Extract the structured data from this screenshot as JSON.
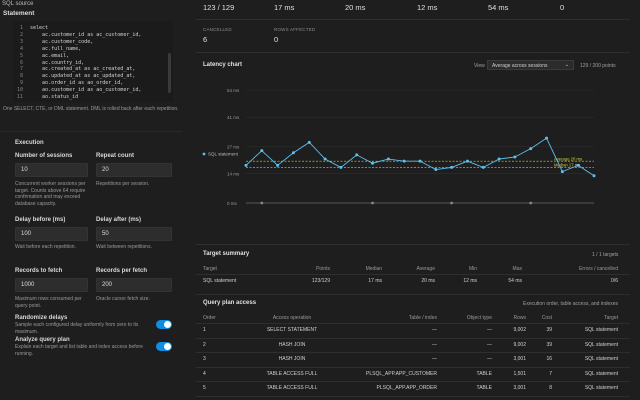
{
  "left": {
    "sql_source_title": "SQL source",
    "statement_label": "Statement",
    "code_lines": [
      {
        "n": "1",
        "text": "select"
      },
      {
        "n": "2",
        "text": "    ac.customer_id as ac_customer_id,"
      },
      {
        "n": "3",
        "text": "    ac.customer_code,"
      },
      {
        "n": "4",
        "text": "    ac.full_name,"
      },
      {
        "n": "5",
        "text": "    ac.email,"
      },
      {
        "n": "6",
        "text": "    ac.country_id,"
      },
      {
        "n": "7",
        "text": "    ac.created_at as ac_created_at,"
      },
      {
        "n": "8",
        "text": "    ac.updated_at as ac_updated_at,"
      },
      {
        "n": "9",
        "text": "    ao.order_id as ao_order_id,"
      },
      {
        "n": "10",
        "text": "    ao.customer_id as ao_customer_id,"
      },
      {
        "n": "11",
        "text": "    ao.status_id"
      }
    ],
    "statement_hint": "One SELECT, CTE, or DML statement. DML is rolled back after each repetition.",
    "execution_title": "Execution",
    "sessions_label": "Number of sessions",
    "sessions_value": "10",
    "sessions_hint": "Concurrent worker sessions per target. Counts above 64 require confirmation and may exceed database capacity.",
    "repeat_label": "Repeat count",
    "repeat_value": "20",
    "repeat_hint": "Repetitions per session.",
    "delay_before_label": "Delay before (ms)",
    "delay_before_value": "100",
    "delay_before_hint": "Wait before each repetition.",
    "delay_after_label": "Delay after (ms)",
    "delay_after_value": "50",
    "delay_after_hint": "Wait between repetitions.",
    "records_label": "Records to fetch",
    "records_value": "1000",
    "records_hint": "Maximum rows consumed per query point.",
    "per_fetch_label": "Records per fetch",
    "per_fetch_value": "200",
    "per_fetch_hint": "Oracle cursor fetch size.",
    "randomize_label": "Randomize delays",
    "randomize_hint": "Sample each configured delay uniformly from zero to its maximum.",
    "randomize_on": true,
    "analyze_label": "Analyze query plan",
    "analyze_hint": "Explain each target and list table and index access before running.",
    "analyze_on": true
  },
  "stats": {
    "row1": [
      "123 / 129",
      "17 ms",
      "20 ms",
      "12 ms",
      "54 ms",
      "0"
    ],
    "cancelled_label": "CANCELLED",
    "cancelled_value": "6",
    "rows_affected_label": "ROWS AFFECTED",
    "rows_affected_value": "0"
  },
  "latency": {
    "title": "Latency chart",
    "view_label": "View",
    "view_value": "Average across sessions",
    "points_info": "129 / 200 points",
    "legend": "SQL statement",
    "average_label": "Average 20 ms",
    "median_label": "Median 17 ms"
  },
  "chart_data": {
    "type": "line",
    "title": "Latency chart",
    "xlabel": "",
    "ylabel": "",
    "ylim": [
      0,
      54
    ],
    "yticks": [
      "54 ms",
      "41 ms",
      "27 ms",
      "14 ms",
      "0 ms"
    ],
    "ytick_values": [
      54,
      41,
      27,
      14,
      0
    ],
    "series": [
      {
        "name": "SQL statement",
        "color": "#5bc0f0",
        "values": [
          18,
          25,
          18,
          24,
          29,
          21,
          17,
          23,
          19,
          21,
          20,
          20,
          16,
          17,
          20,
          17,
          21,
          22,
          26,
          31,
          15,
          18,
          13
        ]
      }
    ],
    "reference_lines": [
      {
        "label": "Average 20 ms",
        "value": 20,
        "color": "#c8d040"
      },
      {
        "label": "Median 17 ms",
        "value": 17,
        "color": "#d8c050"
      }
    ],
    "marker_points": [
      1,
      8,
      13,
      18
    ],
    "grid": true,
    "legend_position": "bottom-left"
  },
  "target_summary": {
    "title": "Target summary",
    "count": "1 / 1 targets",
    "headers": [
      "Target",
      "Points",
      "Median",
      "Average",
      "Min",
      "Max",
      "Errors / cancelled"
    ],
    "rows": [
      [
        "SQL statement",
        "123/129",
        "17 ms",
        "20 ms",
        "12 ms",
        "54 ms",
        "0/6"
      ]
    ]
  },
  "query_plan": {
    "title": "Query plan access",
    "subtitle": "Execution order, table access, and indexes",
    "headers": [
      "Order",
      "Access operation",
      "Table / index",
      "Object type",
      "Rows",
      "Cost",
      "Target"
    ],
    "rows": [
      [
        "1",
        "SELECT STATEMENT",
        "—",
        "—",
        "9,002",
        "39",
        "SQL statement"
      ],
      [
        "2",
        "HASH JOIN",
        "—",
        "—",
        "9,002",
        "39",
        "SQL statement"
      ],
      [
        "3",
        "HASH JOIN",
        "—",
        "—",
        "3,001",
        "16",
        "SQL statement"
      ],
      [
        "4",
        "TABLE ACCESS FULL",
        "PLSQL_APP.APP_CUSTOMER",
        "TABLE",
        "1,501",
        "7",
        "SQL statement"
      ],
      [
        "5",
        "TABLE ACCESS FULL",
        "PLSQL_APP.APP_ORDER",
        "TABLE",
        "3,001",
        "8",
        "SQL statement"
      ],
      [
        "6",
        "TABLE ACCESS FULL",
        "PLSQL_APP.APP_ORDER_ITEM",
        "TABLE",
        "9,002",
        "23",
        "SQL statement"
      ]
    ]
  }
}
